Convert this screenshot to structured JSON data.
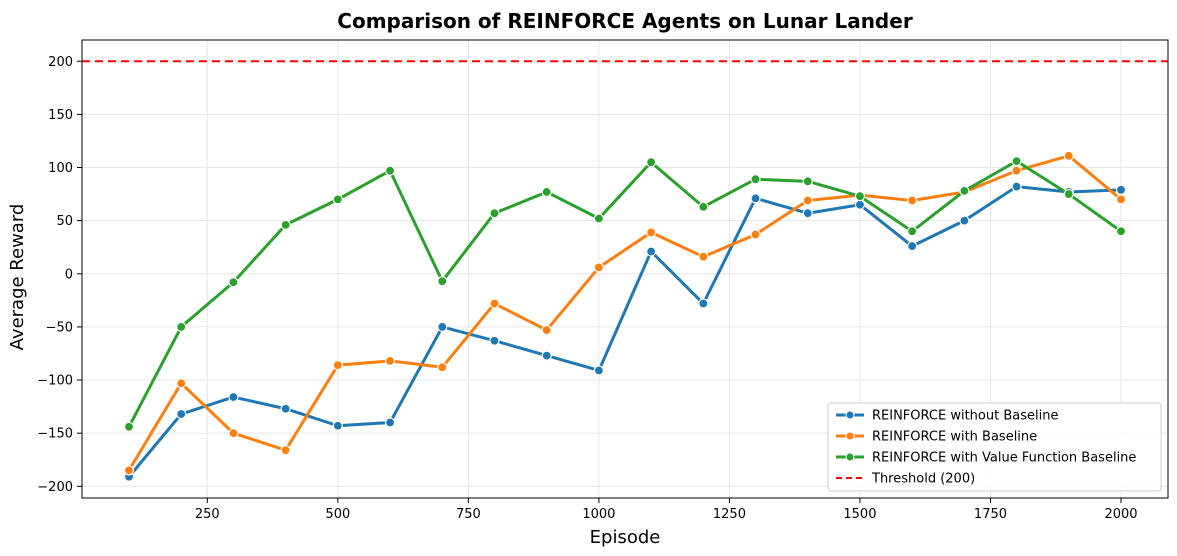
{
  "chart_data": {
    "type": "line",
    "title": "Comparison of REINFORCE Agents on Lunar Lander",
    "xlabel": "Episode",
    "ylabel": "Average Reward",
    "xlim": [
      10,
      2090
    ],
    "ylim": [
      -211,
      220
    ],
    "xticks": [
      250,
      500,
      750,
      1000,
      1250,
      1500,
      1750,
      2000
    ],
    "yticks": [
      -200,
      -150,
      -100,
      -50,
      0,
      50,
      100,
      150,
      200
    ],
    "grid": true,
    "legend_position": "lower-right",
    "x": [
      100,
      200,
      300,
      400,
      500,
      600,
      700,
      800,
      900,
      1000,
      1100,
      1200,
      1300,
      1400,
      1500,
      1600,
      1700,
      1800,
      1900,
      2000
    ],
    "series": [
      {
        "name": "REINFORCE without Baseline",
        "color": "#1f77b4",
        "values": [
          -191,
          -132,
          -116,
          -127,
          -143,
          -140,
          -50,
          -63,
          -77,
          -91,
          21,
          -28,
          71,
          57,
          65,
          26,
          50,
          82,
          77,
          79
        ]
      },
      {
        "name": "REINFORCE with Baseline",
        "color": "#ff7f0e",
        "values": [
          -185,
          -103,
          -150,
          -166,
          -86,
          -82,
          -88,
          -28,
          -53,
          6,
          39,
          16,
          37,
          69,
          74,
          69,
          77,
          97,
          111,
          70
        ]
      },
      {
        "name": "REINFORCE with Value Function Baseline",
        "color": "#2ca02c",
        "values": [
          -144,
          -50,
          -8,
          46,
          70,
          97,
          -7,
          57,
          77,
          52,
          105,
          63,
          89,
          87,
          73,
          40,
          78,
          106,
          75,
          40
        ]
      }
    ],
    "threshold": {
      "name": "Threshold (200)",
      "value": 200,
      "color": "#ff0000",
      "style": "dashed"
    }
  }
}
